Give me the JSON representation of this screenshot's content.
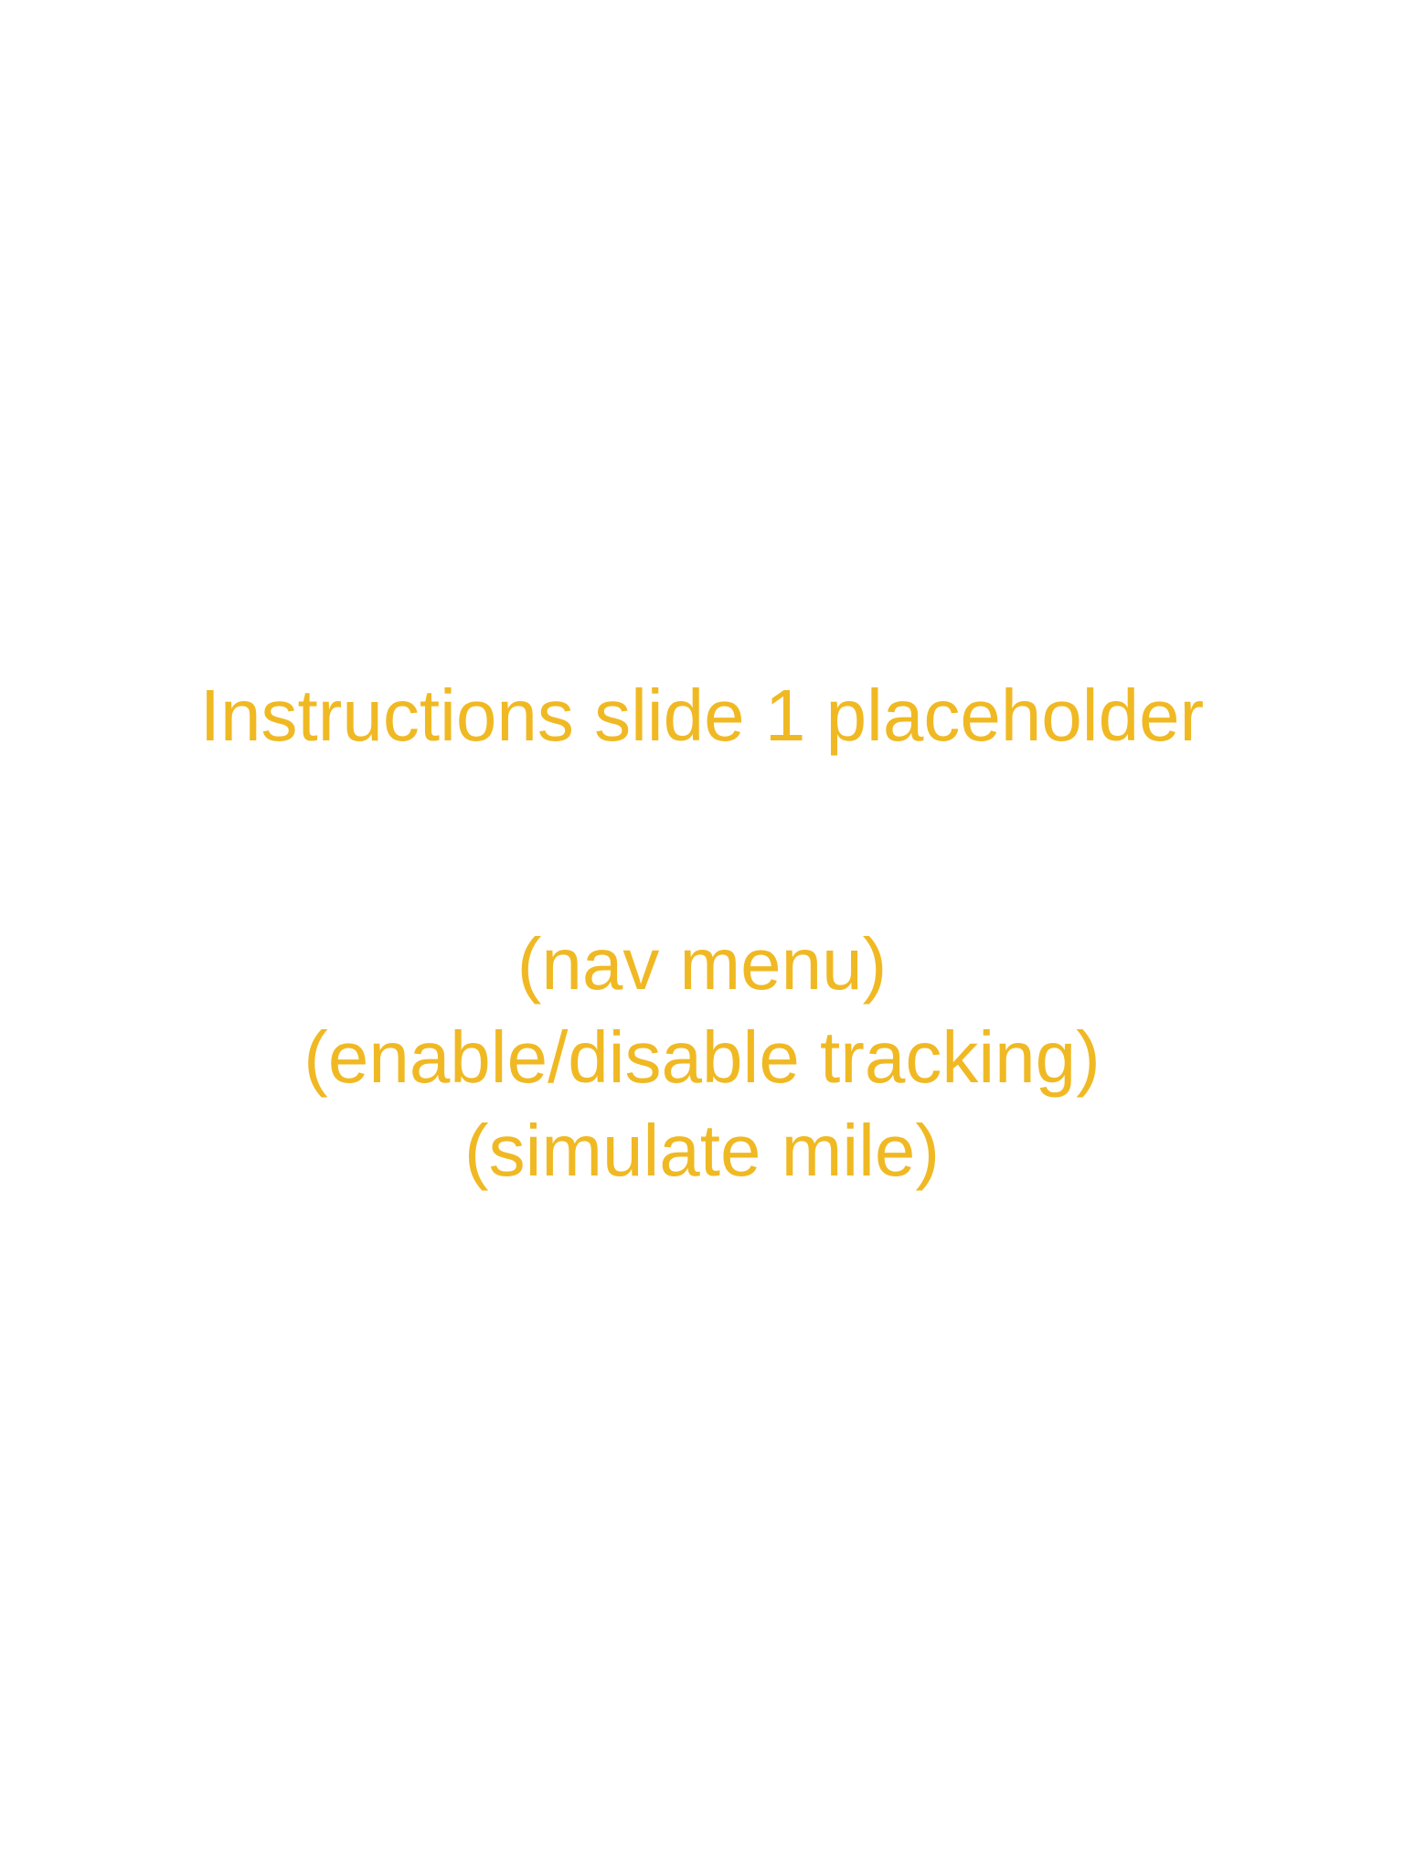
{
  "slide": {
    "title": "Instructions slide 1 placeholder",
    "lines": [
      "(nav menu)",
      "(enable/disable tracking)",
      "(simulate mile)"
    ]
  },
  "colors": {
    "background": "#ffffff",
    "text": "#F0B923"
  }
}
